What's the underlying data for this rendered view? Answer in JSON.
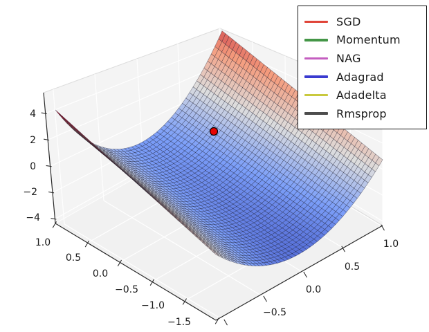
{
  "figure": {
    "background": "#ffffff",
    "title": ""
  },
  "chart_data": {
    "type": "surface3d",
    "title": "",
    "description": "3D saddle-shaped loss surface (coolwarm colormap) with a red start-point marker near the saddle and a legend of gradient-descent optimizers.",
    "surface": {
      "colormap": "coolwarm",
      "colormap_stops": [
        "#3b4cc0",
        "#7c9ff9",
        "#dddddd",
        "#f59c7d",
        "#b40426"
      ],
      "mesh_cells": 46,
      "edge_color": "rgba(22,22,40,0.5)",
      "z_model": {
        "formula": "z(u,t) = (c_base + c_gain*u)*quad*(t-0.5)^2 + tilt*u*(t-0.5) + depth_base + depth_gain*u",
        "c_base": 6.3,
        "c_gain": 3.6,
        "quad": 2.25,
        "tilt": -1.2,
        "depth_base": -2.9,
        "depth_gain": 1.0,
        "norm_min": -3.8,
        "norm_max": 4.1
      }
    },
    "axes": {
      "x": {
        "tick_labels": [
          "1.0",
          "0.5",
          "0.0",
          "−0.5",
          "−1.0",
          "−1.5"
        ],
        "range": [
          -1.5,
          1.0
        ]
      },
      "y": {
        "tick_labels": [
          "−0.5",
          "0.0",
          "0.5",
          "1.0"
        ],
        "range": [
          -1.05,
          1.0
        ]
      },
      "z": {
        "tick_labels": [
          "4",
          "2",
          "0",
          "−2",
          "−4"
        ],
        "range": [
          -4.33,
          5.57
        ]
      }
    },
    "marker": {
      "color": "#e60400",
      "edge_color": "#000000",
      "approx_position": {
        "x": 0.35,
        "y": 0.6
      }
    },
    "legend": {
      "position": "upper right",
      "items": [
        {
          "label": "SGD",
          "color": "#e04438"
        },
        {
          "label": "Momentum",
          "color": "#449647"
        },
        {
          "label": "NAG",
          "color": "#c45ec0"
        },
        {
          "label": "Adagrad",
          "color": "#3a3bd0"
        },
        {
          "label": "Adadelta",
          "color": "#c9c93e"
        },
        {
          "label": "Rmsprop",
          "color": "#4d4d4d"
        }
      ]
    }
  }
}
